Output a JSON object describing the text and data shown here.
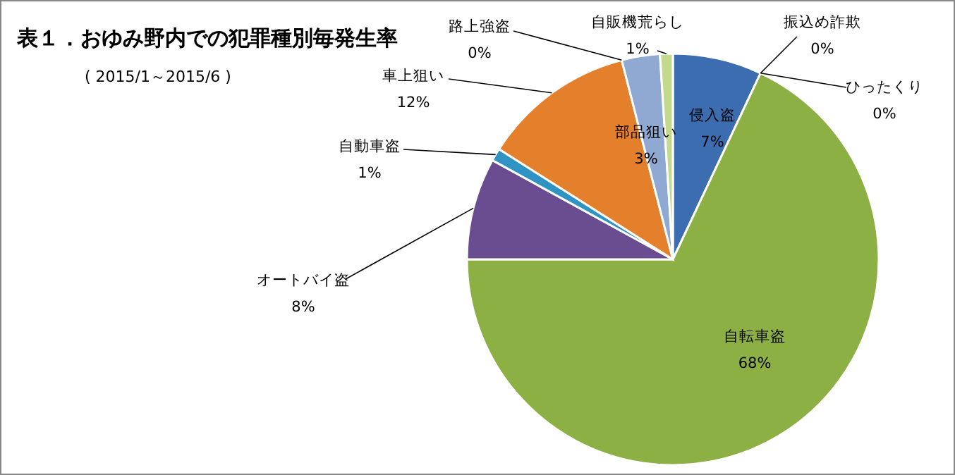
{
  "chart_data": {
    "type": "pie",
    "title": "表１．おゆみ野内での犯罪種別毎発生率",
    "subtitle": "( 2015/1～2015/6 )",
    "categories": [
      "侵入盗",
      "振込め詐欺",
      "ひったくり",
      "自転車盗",
      "オートバイ盗",
      "自動車盗",
      "車上狙い",
      "路上強盗",
      "部品狙い",
      "自販機荒らし"
    ],
    "values": [
      7,
      0,
      0,
      68,
      8,
      1,
      12,
      0,
      3,
      1
    ],
    "value_labels": [
      "7%",
      "0%",
      "0%",
      "68%",
      "8%",
      "1%",
      "12%",
      "0%",
      "3%",
      "1%"
    ],
    "colors": [
      "#3b6db0",
      null,
      null,
      "#8cb043",
      "#6a4c90",
      "#2f93c4",
      "#e47f2c",
      null,
      "#90a9d2",
      "#c3d98e"
    ]
  }
}
